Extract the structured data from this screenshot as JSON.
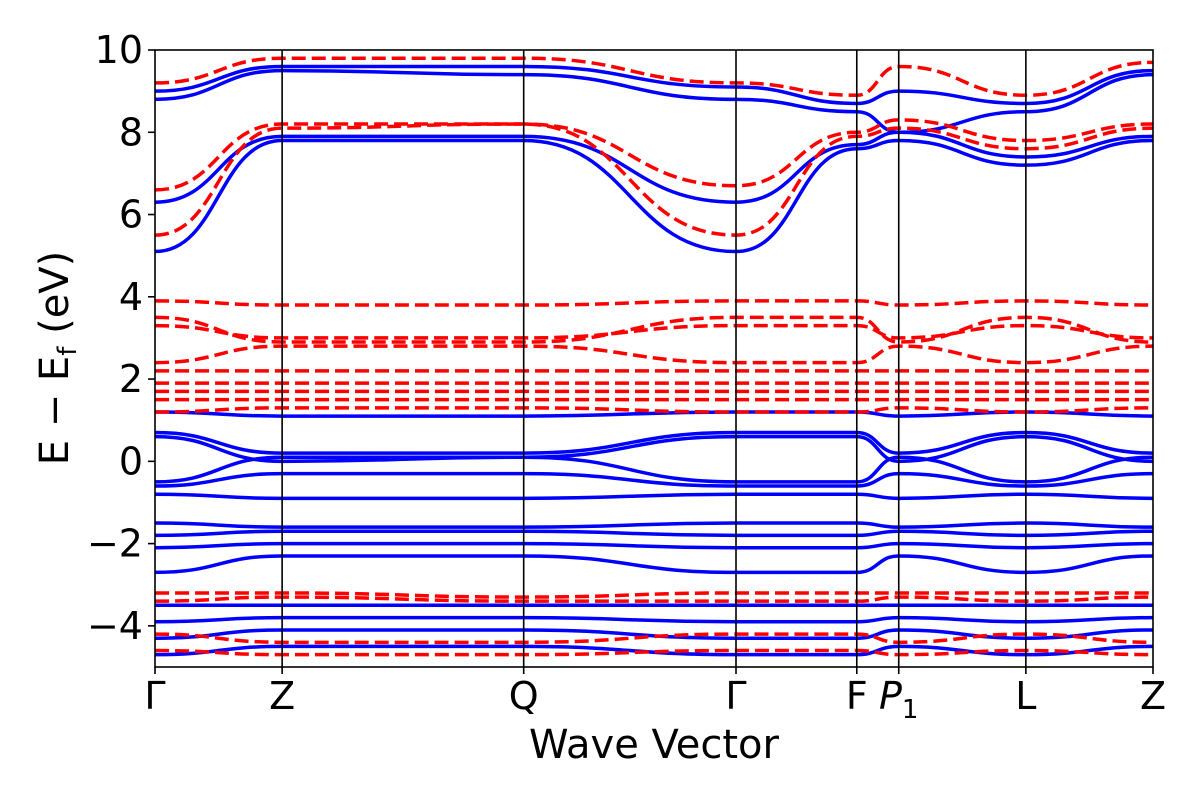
{
  "chart_data": {
    "type": "line",
    "title": "",
    "xlabel": "Wave Vector",
    "ylabel": "E − E_f (eV)",
    "ylabel_parts": {
      "main": "E − E",
      "sub": "f",
      "tail": " (eV)"
    },
    "ylim": [
      -5,
      10
    ],
    "yticks": [
      -4,
      -2,
      0,
      2,
      4,
      6,
      8,
      10
    ],
    "ytick_labels": [
      "−4",
      "−2",
      "0",
      "2",
      "4",
      "6",
      "8",
      "10"
    ],
    "kpath": [
      {
        "label": "Γ",
        "x": 0.0
      },
      {
        "label": "Z",
        "x": 1.0
      },
      {
        "label": "Q",
        "x": 2.9
      },
      {
        "label": "Γ",
        "x": 4.57
      },
      {
        "label": "F",
        "x": 5.52
      },
      {
        "label": "P",
        "sub": "1",
        "x": 5.85
      },
      {
        "label": "L",
        "x": 6.85
      },
      {
        "label": "Z",
        "x": 7.85
      }
    ],
    "grid": false,
    "colors": {
      "series_a": "#0000ff",
      "series_b": "#ff0000"
    },
    "series": [
      {
        "style": "solid",
        "color": "#0000ff",
        "bands": [
          {
            "x": [
              0,
              1,
              2.9,
              4.57,
              5.52,
              5.85,
              6.85,
              7.85
            ],
            "y": [
              5.1,
              7.8,
              7.8,
              5.1,
              7.6,
              7.8,
              7.2,
              7.8
            ]
          },
          {
            "x": [
              0,
              1,
              2.9,
              4.57,
              5.52,
              5.85,
              6.85,
              7.85
            ],
            "y": [
              6.3,
              7.9,
              7.9,
              6.3,
              7.7,
              8.0,
              7.4,
              7.9
            ]
          },
          {
            "x": [
              0,
              1,
              2.9,
              4.57,
              5.52,
              5.85,
              6.85,
              7.85
            ],
            "y": [
              8.8,
              9.5,
              9.4,
              8.8,
              8.5,
              8.0,
              8.5,
              9.4
            ]
          },
          {
            "x": [
              0,
              1,
              2.9,
              4.57,
              5.52,
              5.85,
              6.85,
              7.85
            ],
            "y": [
              9.0,
              9.6,
              9.6,
              9.1,
              8.7,
              9.0,
              8.7,
              9.5
            ]
          },
          {
            "x": [
              0,
              1,
              2.9,
              4.57,
              5.52,
              5.85,
              6.85,
              7.85
            ],
            "y": [
              1.2,
              1.1,
              1.1,
              1.2,
              1.2,
              1.1,
              1.2,
              1.1
            ]
          },
          {
            "x": [
              0,
              1,
              2.9,
              4.57,
              5.52,
              5.85,
              6.85,
              7.85
            ],
            "y": [
              0.7,
              0.2,
              0.2,
              0.7,
              0.7,
              0.2,
              0.7,
              0.2
            ]
          },
          {
            "x": [
              0,
              1,
              2.9,
              4.57,
              5.52,
              5.85,
              6.85,
              7.85
            ],
            "y": [
              0.6,
              0.0,
              0.1,
              0.6,
              0.6,
              0.0,
              0.6,
              0.0
            ]
          },
          {
            "x": [
              0,
              1,
              2.9,
              4.57,
              5.52,
              5.85,
              6.85,
              7.85
            ],
            "y": [
              -0.5,
              0.1,
              0.1,
              -0.5,
              -0.5,
              0.1,
              -0.5,
              0.1
            ]
          },
          {
            "x": [
              0,
              1,
              2.9,
              4.57,
              5.52,
              5.85,
              6.85,
              7.85
            ],
            "y": [
              -0.6,
              -0.3,
              -0.3,
              -0.6,
              -0.6,
              -0.3,
              -0.6,
              -0.3
            ]
          },
          {
            "x": [
              0,
              1,
              2.9,
              4.57,
              5.52,
              5.85,
              6.85,
              7.85
            ],
            "y": [
              -0.8,
              -0.9,
              -0.9,
              -0.8,
              -0.8,
              -0.9,
              -0.8,
              -0.9
            ]
          },
          {
            "x": [
              0,
              1,
              2.9,
              4.57,
              5.52,
              5.85,
              6.85,
              7.85
            ],
            "y": [
              -1.5,
              -1.6,
              -1.6,
              -1.5,
              -1.5,
              -1.6,
              -1.5,
              -1.6
            ]
          },
          {
            "x": [
              0,
              1,
              2.9,
              4.57,
              5.52,
              5.85,
              6.85,
              7.85
            ],
            "y": [
              -1.8,
              -1.7,
              -1.7,
              -1.8,
              -1.8,
              -1.7,
              -1.8,
              -1.7
            ]
          },
          {
            "x": [
              0,
              1,
              2.9,
              4.57,
              5.52,
              5.85,
              6.85,
              7.85
            ],
            "y": [
              -2.1,
              -2.0,
              -2.0,
              -2.1,
              -2.1,
              -2.0,
              -2.1,
              -2.0
            ]
          },
          {
            "x": [
              0,
              1,
              2.9,
              4.57,
              5.52,
              5.85,
              6.85,
              7.85
            ],
            "y": [
              -2.7,
              -2.3,
              -2.3,
              -2.7,
              -2.7,
              -2.3,
              -2.7,
              -2.3
            ]
          },
          {
            "x": [
              0,
              1,
              2.9,
              4.57,
              5.52,
              5.85,
              6.85,
              7.85
            ],
            "y": [
              -3.5,
              -3.5,
              -3.5,
              -3.5,
              -3.5,
              -3.5,
              -3.5,
              -3.5
            ]
          },
          {
            "x": [
              0,
              1,
              2.9,
              4.57,
              5.52,
              5.85,
              6.85,
              7.85
            ],
            "y": [
              -3.9,
              -3.8,
              -3.8,
              -3.9,
              -3.9,
              -3.8,
              -3.9,
              -3.8
            ]
          },
          {
            "x": [
              0,
              1,
              2.9,
              4.57,
              5.52,
              5.85,
              6.85,
              7.85
            ],
            "y": [
              -4.3,
              -4.1,
              -4.1,
              -4.3,
              -4.3,
              -4.1,
              -4.3,
              -4.1
            ]
          },
          {
            "x": [
              0,
              1,
              2.9,
              4.57,
              5.52,
              5.85,
              6.85,
              7.85
            ],
            "y": [
              -4.7,
              -4.5,
              -4.5,
              -4.7,
              -4.7,
              -4.5,
              -4.7,
              -4.5
            ]
          }
        ]
      },
      {
        "style": "dashed",
        "color": "#ff0000",
        "bands": [
          {
            "x": [
              0,
              1,
              2.9,
              4.57,
              5.52,
              5.85,
              6.85,
              7.85
            ],
            "y": [
              5.5,
              8.1,
              8.2,
              5.5,
              7.9,
              8.1,
              7.6,
              8.1
            ]
          },
          {
            "x": [
              0,
              1,
              2.9,
              4.57,
              5.52,
              5.85,
              6.85,
              7.85
            ],
            "y": [
              6.6,
              8.2,
              8.2,
              6.7,
              8.0,
              8.3,
              7.8,
              8.2
            ]
          },
          {
            "x": [
              0,
              1,
              2.9,
              4.57,
              5.52,
              5.85,
              6.85,
              7.85
            ],
            "y": [
              9.2,
              9.8,
              9.8,
              9.2,
              8.9,
              9.6,
              8.9,
              9.7
            ]
          },
          {
            "x": [
              0,
              1,
              2.9,
              4.57,
              5.52,
              5.85,
              6.85,
              7.85
            ],
            "y": [
              3.9,
              3.8,
              3.8,
              3.9,
              3.9,
              3.8,
              3.9,
              3.8
            ]
          },
          {
            "x": [
              0,
              1,
              2.9,
              4.57,
              5.52,
              5.85,
              6.85,
              7.85
            ],
            "y": [
              3.5,
              2.9,
              2.9,
              3.5,
              3.5,
              2.9,
              3.5,
              2.9
            ]
          },
          {
            "x": [
              0,
              1,
              2.9,
              4.57,
              5.52,
              5.85,
              6.85,
              7.85
            ],
            "y": [
              3.3,
              3.0,
              3.0,
              3.3,
              3.3,
              3.0,
              3.3,
              3.0
            ]
          },
          {
            "x": [
              0,
              1,
              2.9,
              4.57,
              5.52,
              5.85,
              6.85,
              7.85
            ],
            "y": [
              2.4,
              2.8,
              2.8,
              2.4,
              2.4,
              2.8,
              2.4,
              2.8
            ]
          },
          {
            "x": [
              0,
              1,
              2.9,
              4.57,
              5.52,
              5.85,
              6.85,
              7.85
            ],
            "y": [
              2.2,
              2.2,
              2.2,
              2.2,
              2.2,
              2.2,
              2.2,
              2.2
            ]
          },
          {
            "x": [
              0,
              1,
              2.9,
              4.57,
              5.52,
              5.85,
              6.85,
              7.85
            ],
            "y": [
              1.9,
              1.9,
              1.9,
              1.9,
              1.9,
              1.9,
              1.9,
              1.9
            ]
          },
          {
            "x": [
              0,
              1,
              2.9,
              4.57,
              5.52,
              5.85,
              6.85,
              7.85
            ],
            "y": [
              1.7,
              1.7,
              1.7,
              1.7,
              1.7,
              1.7,
              1.7,
              1.7
            ]
          },
          {
            "x": [
              0,
              1,
              2.9,
              4.57,
              5.52,
              5.85,
              6.85,
              7.85
            ],
            "y": [
              1.5,
              1.5,
              1.5,
              1.5,
              1.5,
              1.5,
              1.5,
              1.5
            ]
          },
          {
            "x": [
              0,
              1,
              2.9,
              4.57,
              5.52,
              5.85,
              6.85,
              7.85
            ],
            "y": [
              1.2,
              1.3,
              1.3,
              1.2,
              1.2,
              1.3,
              1.2,
              1.3
            ]
          },
          {
            "x": [
              0,
              1,
              2.9,
              4.57,
              5.52,
              5.85,
              6.85,
              7.85
            ],
            "y": [
              -3.2,
              -3.2,
              -3.3,
              -3.2,
              -3.2,
              -3.2,
              -3.2,
              -3.2
            ]
          },
          {
            "x": [
              0,
              1,
              2.9,
              4.57,
              5.52,
              5.85,
              6.85,
              7.85
            ],
            "y": [
              -3.4,
              -3.3,
              -3.4,
              -3.4,
              -3.4,
              -3.3,
              -3.4,
              -3.3
            ]
          },
          {
            "x": [
              0,
              1,
              2.9,
              4.57,
              5.52,
              5.85,
              6.85,
              7.85
            ],
            "y": [
              -4.2,
              -4.4,
              -4.4,
              -4.2,
              -4.2,
              -4.4,
              -4.2,
              -4.4
            ]
          },
          {
            "x": [
              0,
              1,
              2.9,
              4.57,
              5.52,
              5.85,
              6.85,
              7.85
            ],
            "y": [
              -4.6,
              -4.7,
              -4.7,
              -4.6,
              -4.6,
              -4.7,
              -4.6,
              -4.7
            ]
          }
        ]
      }
    ]
  }
}
